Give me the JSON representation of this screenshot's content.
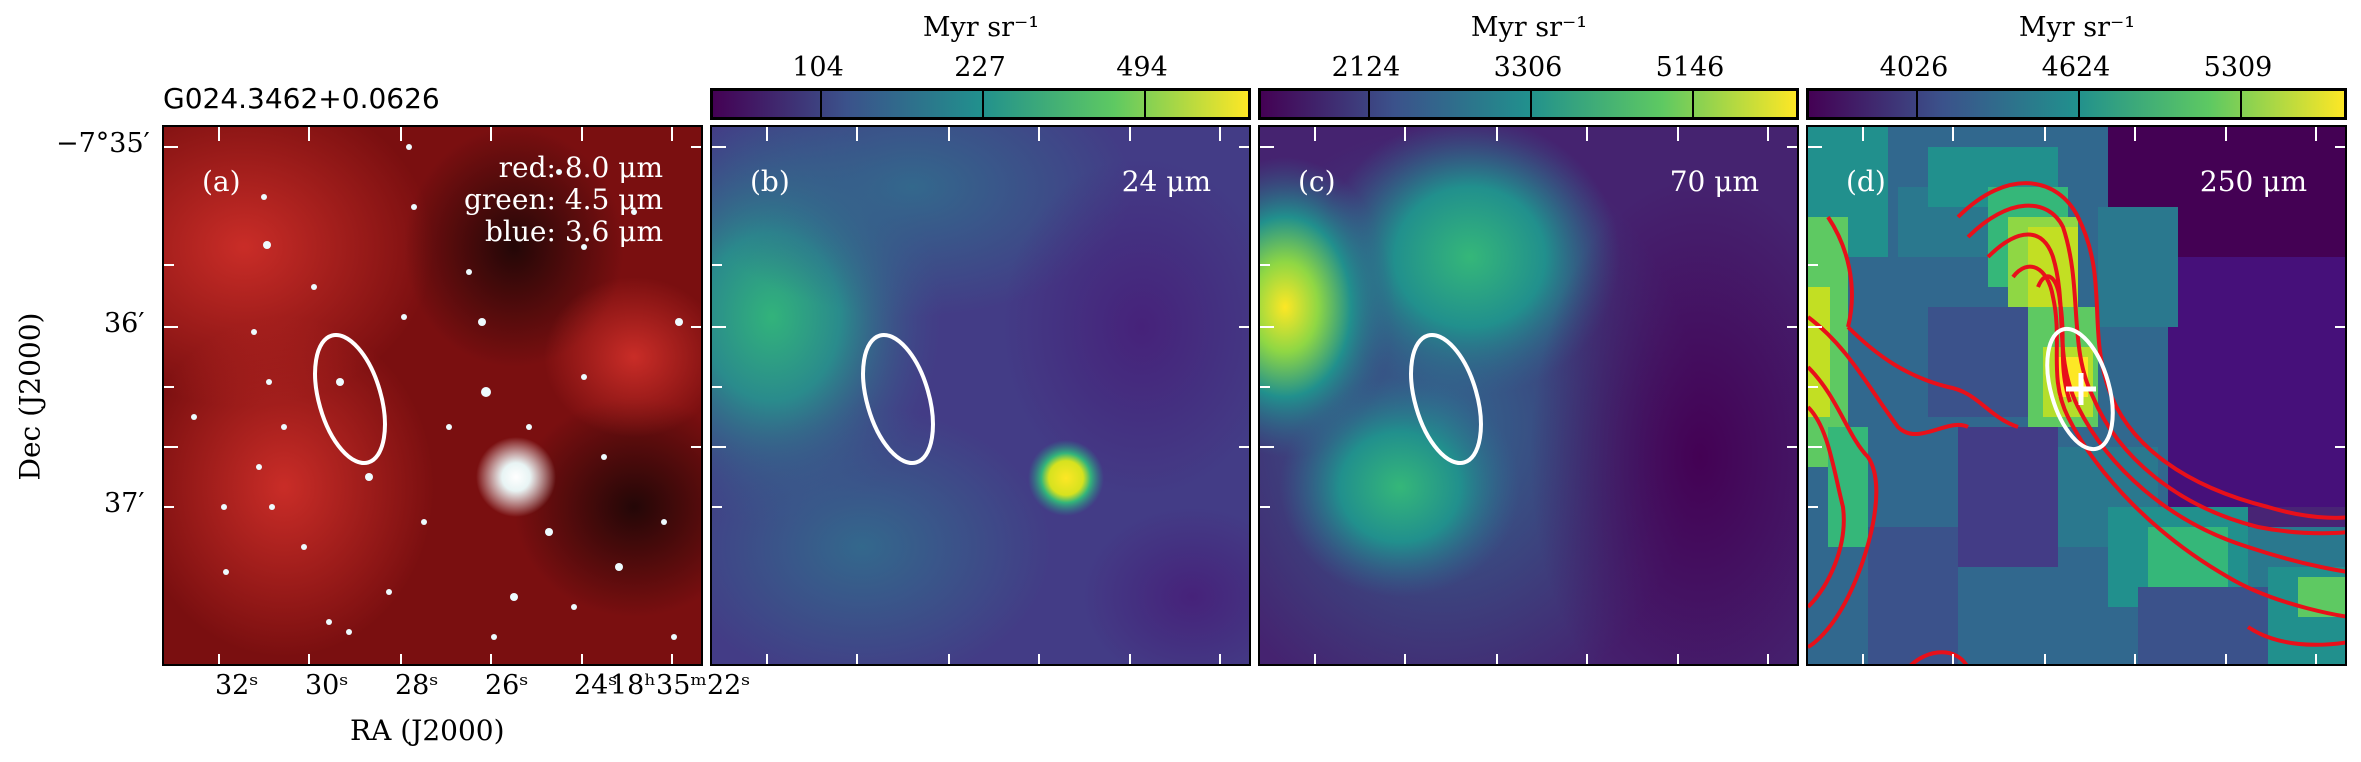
{
  "source_name": "G024.3462+0.0626",
  "panels": [
    {
      "tag": "(a)",
      "legend": [
        "red: 8.0 μm",
        "green: 4.5 μm",
        "blue: 3.6 μm"
      ]
    },
    {
      "tag": "(b)",
      "wavelength": "24 μm"
    },
    {
      "tag": "(c)",
      "wavelength": "70 μm"
    },
    {
      "tag": "(d)",
      "wavelength": "250 μm"
    }
  ],
  "colorbars": [
    {
      "unit": "Myr sr⁻¹",
      "ticks": [
        "104",
        "227",
        "494"
      ]
    },
    {
      "unit": "Myr sr⁻¹",
      "ticks": [
        "2124",
        "3306",
        "5146"
      ]
    },
    {
      "unit": "Myr sr⁻¹",
      "ticks": [
        "4026",
        "4624",
        "5309"
      ]
    }
  ],
  "axes": {
    "xlabel": "RA (J2000)",
    "ylabel": "Dec (J2000)",
    "ra_ticks": [
      "32ˢ",
      "30ˢ",
      "28ˢ",
      "26ˢ",
      "24ˢ",
      "18ʰ35ᵐ22ˢ"
    ],
    "dec_ticks": [
      "−7°35′",
      "36′",
      "37′"
    ]
  },
  "colors": {
    "viridis_dark": "#440154",
    "viridis_mid": "#21908d",
    "viridis_bright": "#fde725",
    "contour": "#e8101a",
    "ellipse": "#ffffff"
  }
}
